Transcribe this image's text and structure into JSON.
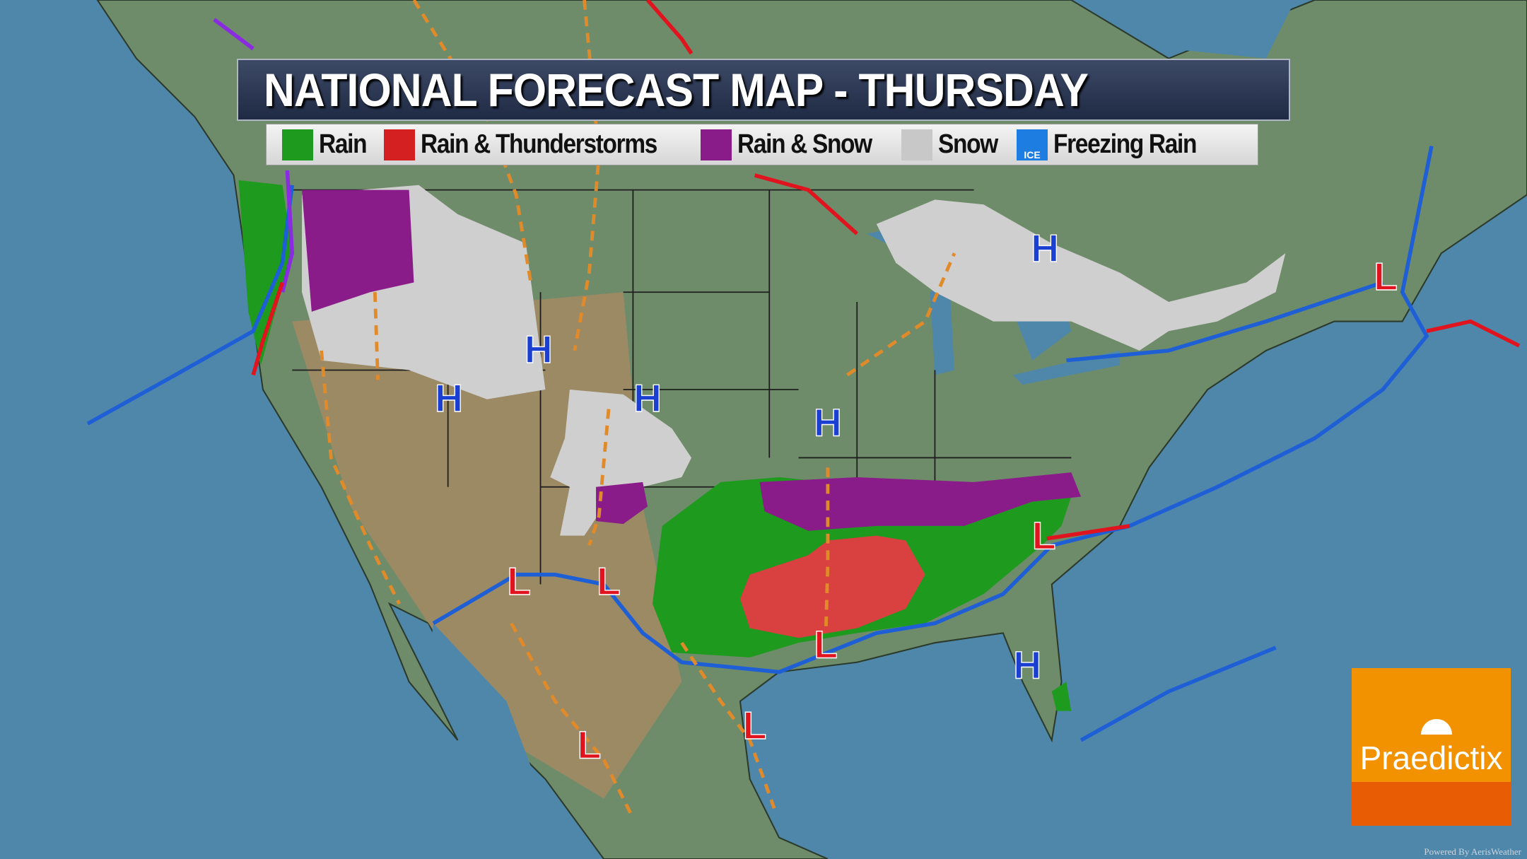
{
  "title": "NATIONAL FORECAST MAP - THURSDAY",
  "legend": [
    {
      "label": "Rain",
      "color": "#1e9a1e",
      "icon": "raindrop-icon"
    },
    {
      "label": "Rain & Thunderstorms",
      "color": "#d42020",
      "icon": "lightning-icon"
    },
    {
      "label": "Rain & Snow",
      "color": "#8a1c8a",
      "icon": "snowflake-icon"
    },
    {
      "label": "Snow",
      "color": "#c8c8c8",
      "icon": "snowflake-icon"
    },
    {
      "label": "Freezing Rain",
      "color": "#1e7de0",
      "icon": "ice-icon",
      "badge": "ICE"
    }
  ],
  "map": {
    "high_label": "H",
    "low_label": "L",
    "high_color": "#1a3fd1",
    "low_color": "#e0141e",
    "cold_front_color": "#1f5fd6",
    "warm_front_color": "#e0141e",
    "occluded_front_color": "#8a2be2",
    "trough_color": "#e08a2a"
  },
  "logo": {
    "text": "Praedictix",
    "powered_by": "Powered By AerisWeather"
  }
}
